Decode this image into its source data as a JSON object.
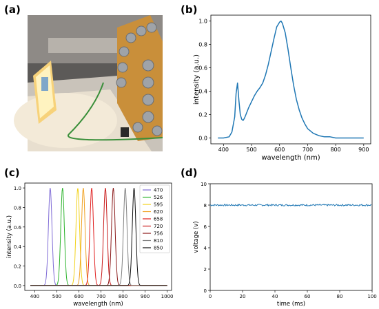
{
  "panels": {
    "a": {
      "label": "(a)"
    },
    "b": {
      "label": "(b)"
    },
    "c": {
      "label": "(c)"
    },
    "d": {
      "label": "(d)"
    }
  },
  "chart_data": [
    {
      "panel": "b",
      "type": "line",
      "xlabel": "wavelength (nm)",
      "ylabel": "intensity (a.u.)",
      "xlim": [
        355,
        925
      ],
      "ylim": [
        -0.05,
        1.05
      ],
      "xticks": [
        "400",
        "500",
        "600",
        "700",
        "800",
        "900"
      ],
      "yticks": [
        "0.0",
        "0.2",
        "0.4",
        "0.6",
        "0.8",
        "1.0"
      ],
      "color": "#1f77b4",
      "x": [
        380,
        400,
        420,
        430,
        440,
        445,
        450,
        455,
        460,
        465,
        470,
        475,
        480,
        490,
        500,
        510,
        520,
        530,
        540,
        550,
        560,
        570,
        580,
        590,
        600,
        605,
        610,
        620,
        630,
        640,
        650,
        660,
        670,
        680,
        690,
        700,
        720,
        740,
        760,
        780,
        800,
        850,
        900
      ],
      "y": [
        0.0,
        0.0,
        0.01,
        0.05,
        0.18,
        0.38,
        0.47,
        0.32,
        0.2,
        0.16,
        0.15,
        0.17,
        0.2,
        0.26,
        0.31,
        0.36,
        0.4,
        0.43,
        0.47,
        0.54,
        0.63,
        0.74,
        0.85,
        0.95,
        0.99,
        1.0,
        0.98,
        0.9,
        0.76,
        0.6,
        0.45,
        0.33,
        0.24,
        0.17,
        0.12,
        0.08,
        0.04,
        0.02,
        0.01,
        0.01,
        0.0,
        0.0,
        0.0
      ]
    },
    {
      "panel": "c",
      "type": "line",
      "xlabel": "wavelength (nm)",
      "ylabel": "intensity (a.u.)",
      "xlim": [
        355,
        1020
      ],
      "ylim": [
        -0.05,
        1.05
      ],
      "xticks": [
        "400",
        "500",
        "600",
        "700",
        "800",
        "900",
        "1000"
      ],
      "yticks": [
        "0.0",
        "0.2",
        "0.4",
        "0.6",
        "0.8",
        "1.0"
      ],
      "legend_position": "upper-right",
      "peak_width_nm": 12,
      "series": [
        {
          "name": "470",
          "peak": 470,
          "color": "#7f6bd6"
        },
        {
          "name": "526",
          "peak": 526,
          "color": "#2bb32b"
        },
        {
          "name": "595",
          "peak": 595,
          "color": "#f2d21a"
        },
        {
          "name": "620",
          "peak": 620,
          "color": "#f0a020"
        },
        {
          "name": "658",
          "peak": 658,
          "color": "#e02020"
        },
        {
          "name": "720",
          "peak": 720,
          "color": "#c81818"
        },
        {
          "name": "756",
          "peak": 756,
          "color": "#8b1a1a"
        },
        {
          "name": "810",
          "peak": 810,
          "color": "#808080"
        },
        {
          "name": "850",
          "peak": 850,
          "color": "#111111"
        }
      ]
    },
    {
      "panel": "d",
      "type": "line",
      "xlabel": "time (ms)",
      "ylabel": "voltage (v)",
      "xlim": [
        0,
        100
      ],
      "ylim": [
        0,
        10
      ],
      "xticks": [
        "0",
        "20",
        "40",
        "60",
        "80",
        "100"
      ],
      "yticks": [
        "0",
        "2",
        "4",
        "6",
        "8",
        "10"
      ],
      "color": "#1f77b4",
      "level": 8.0,
      "noise_amplitude": 0.08
    }
  ]
}
